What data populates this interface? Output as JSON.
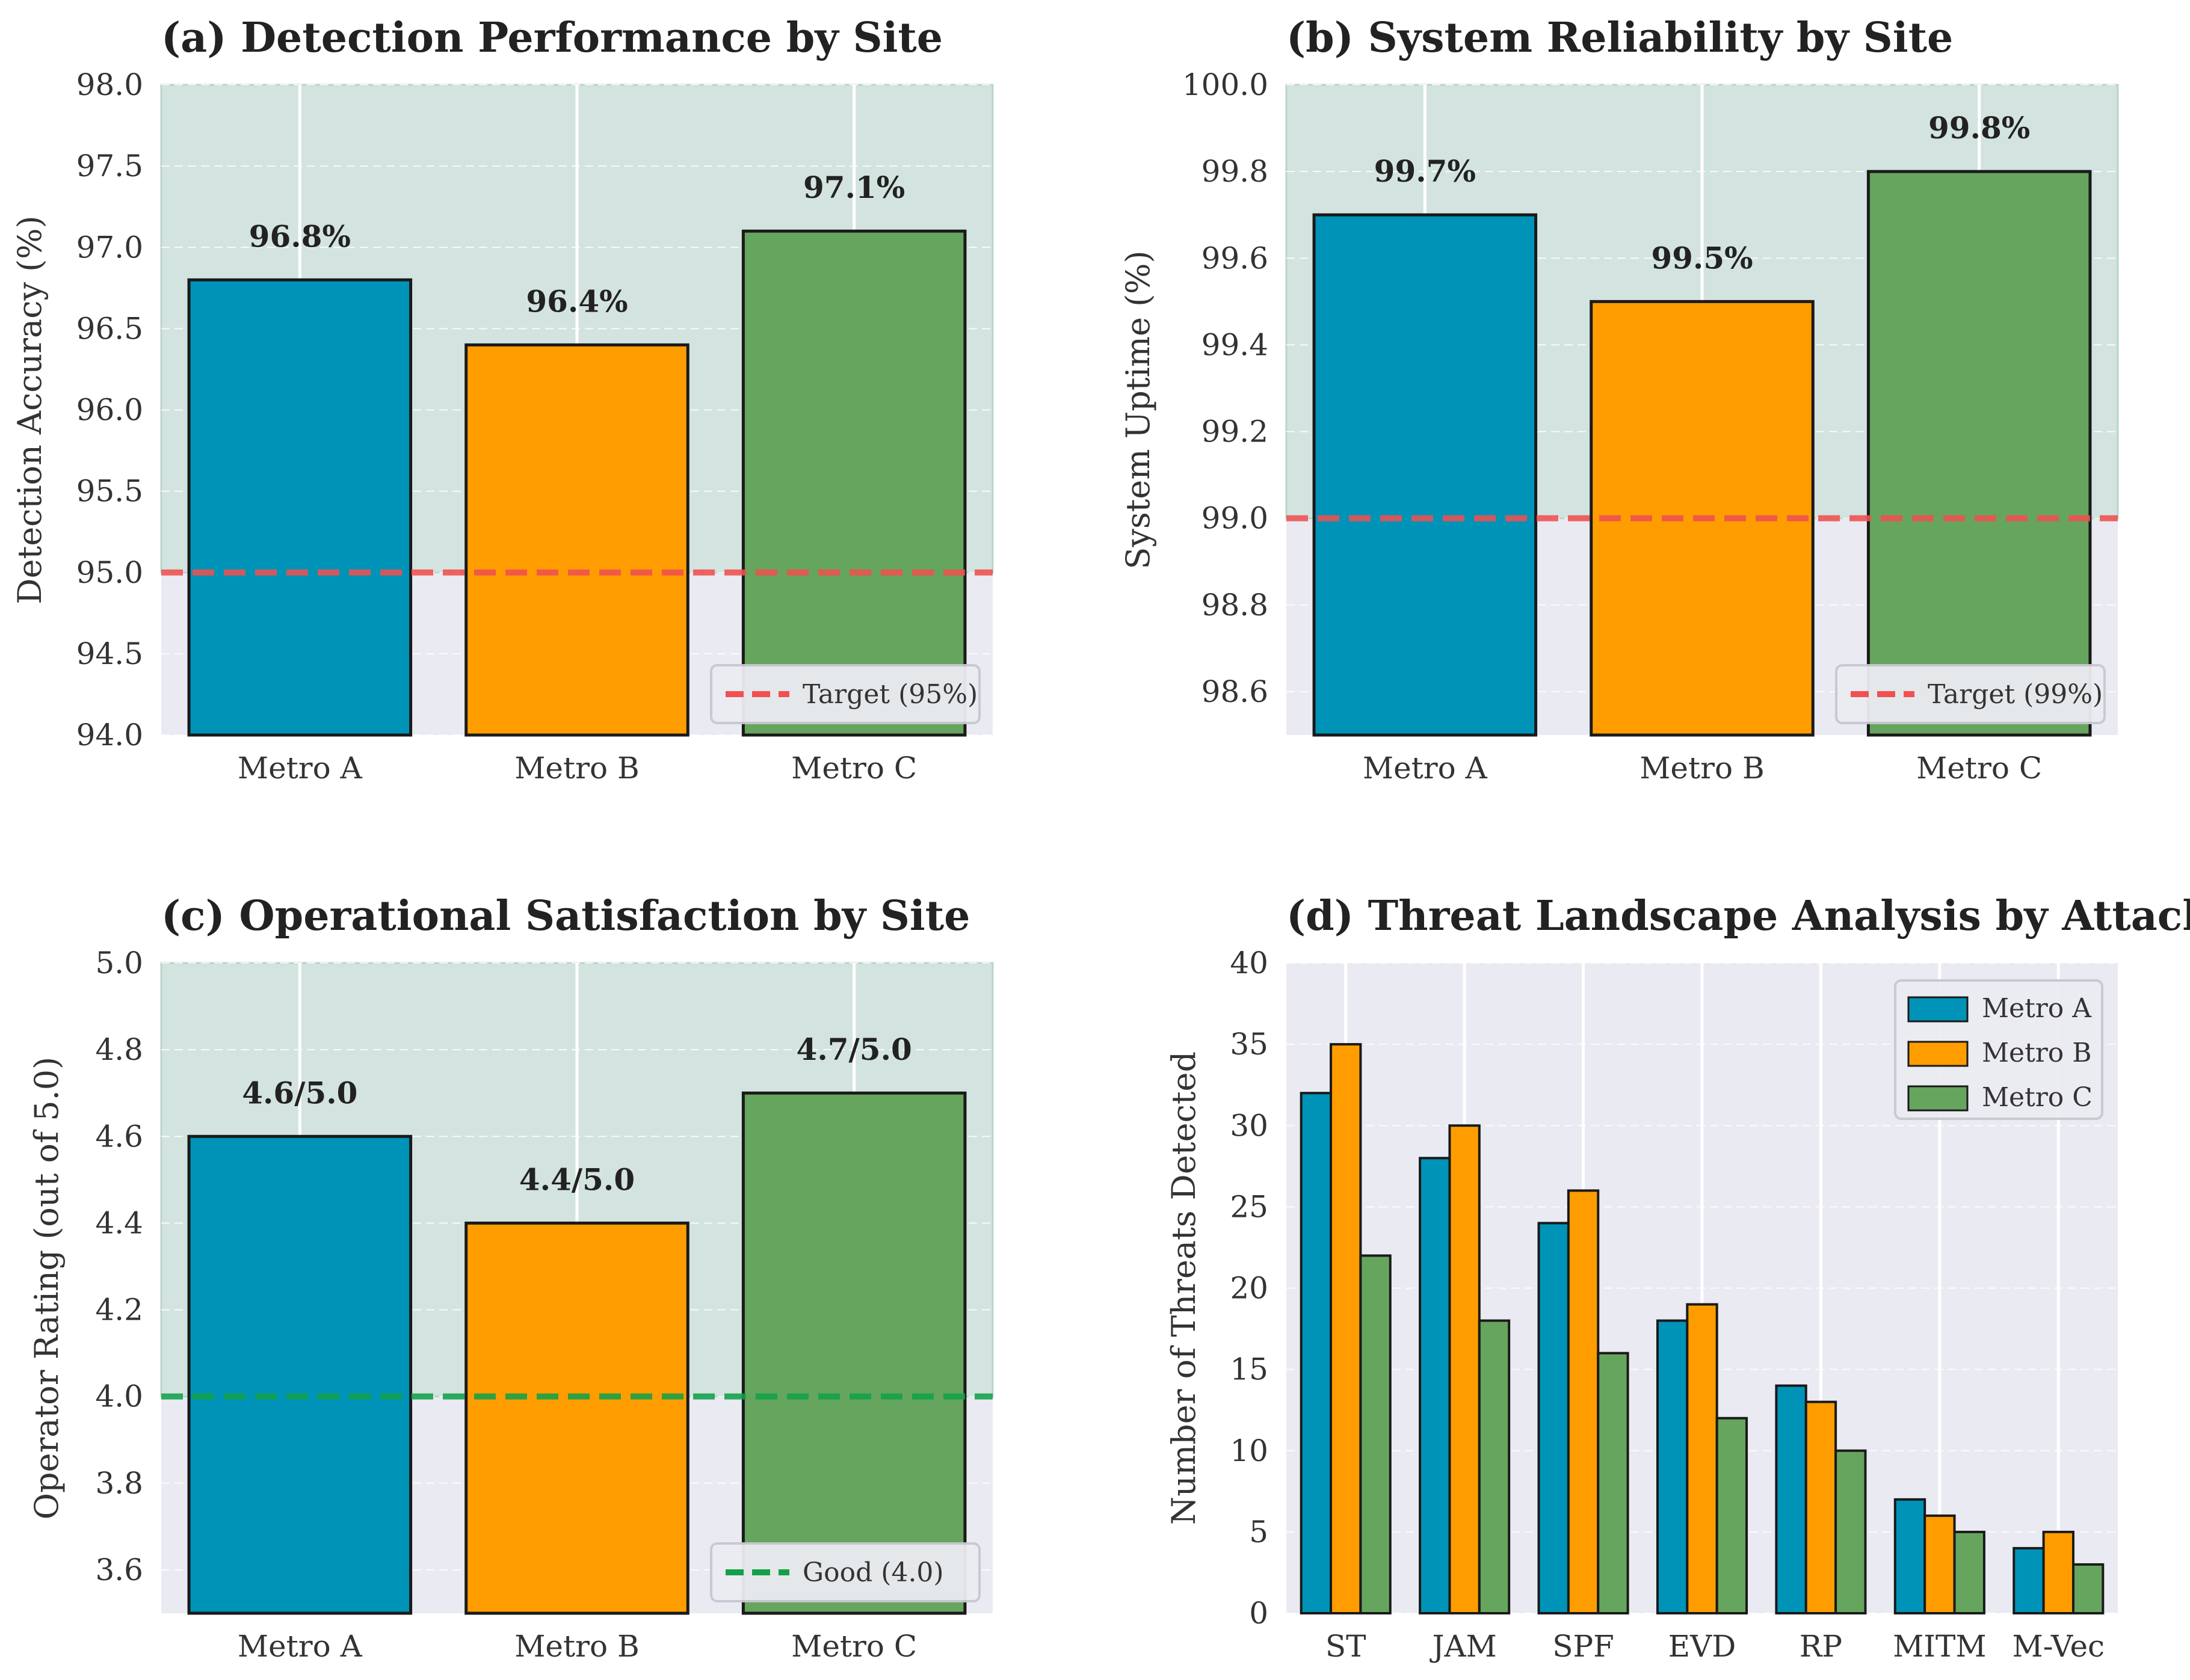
{
  "colors": {
    "metro_a": "#0093b8",
    "metro_b": "#ff9d00",
    "metro_c": "#66a55d",
    "target": "#f05050",
    "good": "#12a14a",
    "axes_bg": "#eaeaf2",
    "good_zone": "#d3e3e0"
  },
  "chart_data": [
    {
      "type": "bar",
      "title": "(a) Detection Performance by Site",
      "xlabel": "",
      "ylabel": "Detection Accuracy (%)",
      "categories": [
        "Metro A",
        "Metro B",
        "Metro C"
      ],
      "values": [
        96.8,
        96.4,
        97.1
      ],
      "value_labels": [
        "96.8%",
        "96.4%",
        "97.1%"
      ],
      "ylim": [
        94.0,
        98.0
      ],
      "yticks": [
        94.0,
        94.5,
        95.0,
        95.5,
        96.0,
        96.5,
        97.0,
        97.5,
        98.0
      ],
      "ytick_labels": [
        "94.0",
        "94.5",
        "95.0",
        "95.5",
        "96.0",
        "96.5",
        "97.0",
        "97.5",
        "98.0"
      ],
      "reference_line": {
        "value": 95.0,
        "label": "Target (95%)",
        "color": "#f05050"
      },
      "legend": "lower-right"
    },
    {
      "type": "bar",
      "title": "(b) System Reliability by Site",
      "xlabel": "",
      "ylabel": "System Uptime (%)",
      "categories": [
        "Metro A",
        "Metro B",
        "Metro C"
      ],
      "values": [
        99.7,
        99.5,
        99.8
      ],
      "value_labels": [
        "99.7%",
        "99.5%",
        "99.8%"
      ],
      "ylim": [
        98.5,
        100.0
      ],
      "yticks": [
        98.6,
        98.8,
        99.0,
        99.2,
        99.4,
        99.6,
        99.8,
        100.0
      ],
      "ytick_labels": [
        "98.6",
        "98.8",
        "99.0",
        "99.2",
        "99.4",
        "99.6",
        "99.8",
        "100.0"
      ],
      "reference_line": {
        "value": 99.0,
        "label": "Target (99%)",
        "color": "#f05050"
      },
      "legend": "lower-right"
    },
    {
      "type": "bar",
      "title": "(c) Operational Satisfaction by Site",
      "xlabel": "",
      "ylabel": "Operator Rating (out of 5.0)",
      "categories": [
        "Metro A",
        "Metro B",
        "Metro C"
      ],
      "values": [
        4.6,
        4.4,
        4.7
      ],
      "value_labels": [
        "4.6/5.0",
        "4.4/5.0",
        "4.7/5.0"
      ],
      "ylim": [
        3.5,
        5.0
      ],
      "yticks": [
        3.6,
        3.8,
        4.0,
        4.2,
        4.4,
        4.6,
        4.8,
        5.0
      ],
      "ytick_labels": [
        "3.6",
        "3.8",
        "4.0",
        "4.2",
        "4.4",
        "4.6",
        "4.8",
        "5.0"
      ],
      "reference_line": {
        "value": 4.0,
        "label": "Good (4.0)",
        "color": "#12a14a"
      },
      "legend": "lower-right"
    },
    {
      "type": "bar",
      "title": "(d) Threat Landscape Analysis by Attack Type",
      "xlabel": "",
      "ylabel": "Number of Threats Detected",
      "categories": [
        "ST",
        "JAM",
        "SPF",
        "EVD",
        "RP",
        "MITM",
        "M-Vec"
      ],
      "series": [
        {
          "name": "Metro A",
          "values": [
            32,
            28,
            24,
            18,
            14,
            7,
            4
          ]
        },
        {
          "name": "Metro B",
          "values": [
            35,
            30,
            26,
            19,
            13,
            6,
            5
          ]
        },
        {
          "name": "Metro C",
          "values": [
            22,
            18,
            16,
            12,
            10,
            5,
            3
          ]
        }
      ],
      "ylim": [
        0,
        40
      ],
      "yticks": [
        0,
        5,
        10,
        15,
        20,
        25,
        30,
        35,
        40
      ],
      "ytick_labels": [
        "0",
        "5",
        "10",
        "15",
        "20",
        "25",
        "30",
        "35",
        "40"
      ],
      "legend": "top-right"
    }
  ]
}
